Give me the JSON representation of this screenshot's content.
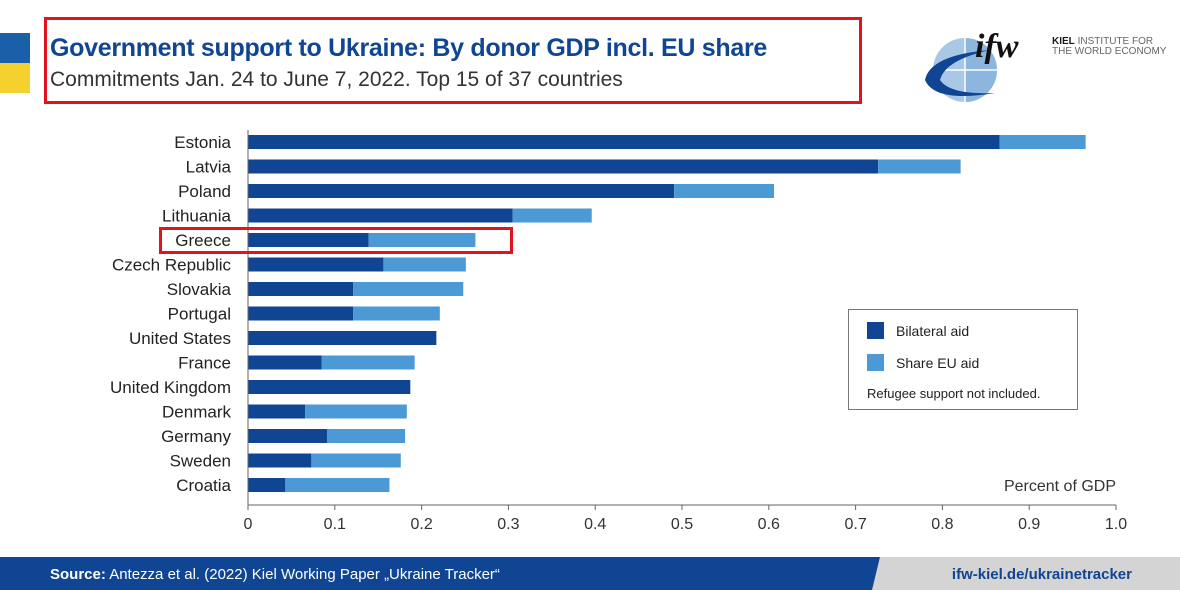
{
  "header": {
    "title": "Government support to Ukraine: By donor GDP incl. EU share",
    "subtitle": "Commitments Jan. 24 to June 7, 2022. Top 15 of 37 countries"
  },
  "logo": {
    "mark": "ifw",
    "line1_bold": "KIEL",
    "line1": "INSTITUTE FOR",
    "line2": "THE WORLD ECONOMY"
  },
  "colors": {
    "bilateral": "#0f4592",
    "eu": "#4b9ad6",
    "highlight": "#e0141e"
  },
  "chart_data": {
    "type": "bar",
    "orientation": "horizontal",
    "stacked": true,
    "title": "Government support to Ukraine: By donor GDP incl. EU share",
    "xlabel": "Percent of GDP",
    "xlim": [
      0,
      1.0
    ],
    "xticks": [
      "0",
      "0.1",
      "0.2",
      "0.3",
      "0.4",
      "0.5",
      "0.6",
      "0.7",
      "0.8",
      "0.9",
      "1.0"
    ],
    "categories": [
      "Estonia",
      "Latvia",
      "Poland",
      "Lithuania",
      "Greece",
      "Czech Republic",
      "Slovakia",
      "Portugal",
      "United States",
      "France",
      "United Kingdom",
      "Denmark",
      "Germany",
      "Sweden",
      "Croatia"
    ],
    "series": [
      {
        "name": "Bilateral aid",
        "values": [
          0.866,
          0.726,
          0.491,
          0.305,
          0.139,
          0.156,
          0.121,
          0.121,
          0.217,
          0.085,
          0.187,
          0.066,
          0.091,
          0.073,
          0.043
        ]
      },
      {
        "name": "Share EU aid",
        "values": [
          0.099,
          0.095,
          0.115,
          0.091,
          0.123,
          0.095,
          0.127,
          0.1,
          0,
          0.107,
          0,
          0.117,
          0.09,
          0.103,
          0.12
        ]
      }
    ],
    "legend_position": "right",
    "note": "Refugee support not included.",
    "highlighted": "Greece"
  },
  "footer": {
    "source_label": "Source:",
    "source": " Antezza et al. (2022) Kiel Working Paper „Ukraine Tracker“",
    "url": "ifw-kiel.de/ukrainetracker"
  }
}
